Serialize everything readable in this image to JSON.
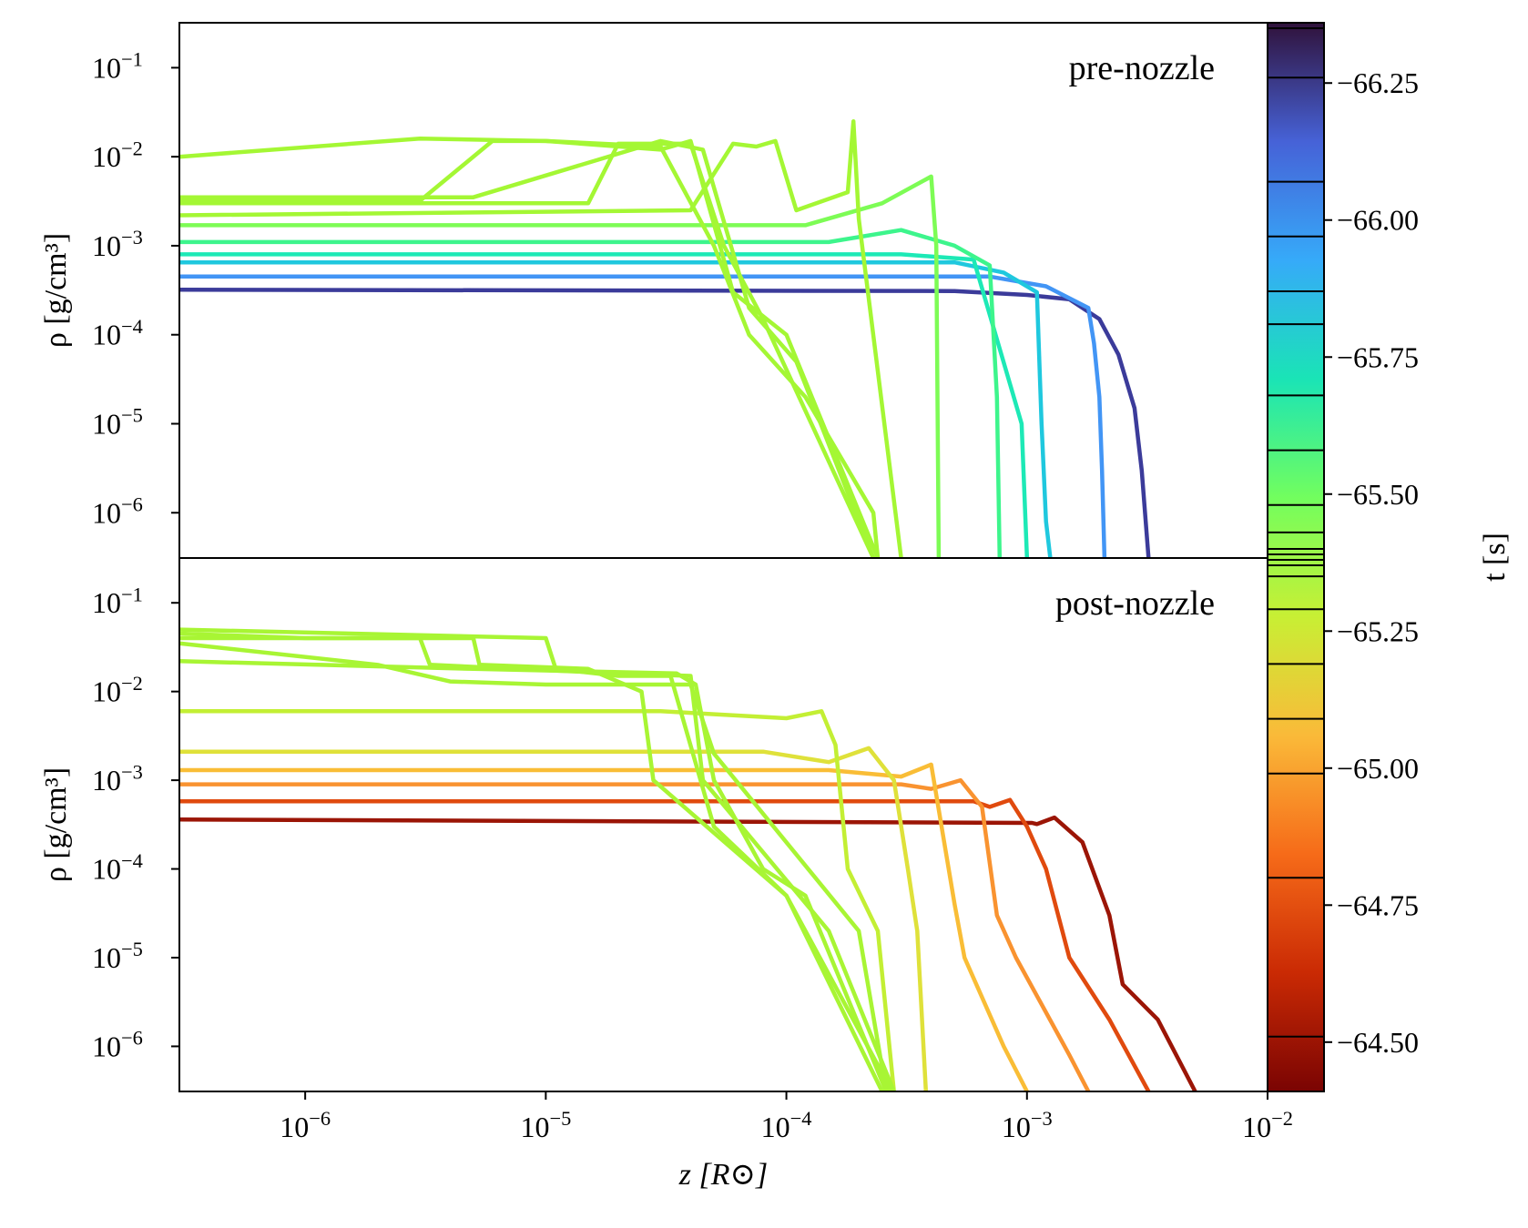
{
  "chart_data": [
    {
      "type": "line",
      "annotation": "pre-nozzle",
      "ylabel": "ρ [g/cm³]",
      "xscale": "log",
      "yscale": "log",
      "xlim": [
        3e-07,
        0.01
      ],
      "ylim": [
        3.1e-07,
        0.32
      ],
      "yticks": [
        {
          "value": 0.1,
          "label": "10−1"
        },
        {
          "value": 0.01,
          "label": "10−2"
        },
        {
          "value": 0.001,
          "label": "10−3"
        },
        {
          "value": 0.0001,
          "label": "10−4"
        },
        {
          "value": 1e-05,
          "label": "10−5"
        },
        {
          "value": 1e-06,
          "label": "10−6"
        }
      ],
      "series": [
        {
          "color": "#3b3b9a",
          "x": [
            3e-07,
            0.0005,
            0.001,
            0.0015,
            0.002,
            0.0024,
            0.0028,
            0.003,
            0.0032
          ],
          "values": [
            0.00032,
            0.00031,
            0.00028,
            0.00025,
            0.00015,
            6e-05,
            1.5e-05,
            3e-06,
            3.1e-07
          ]
        },
        {
          "color": "#4295f5",
          "x": [
            3e-07,
            0.0007,
            0.0012,
            0.0018,
            0.0019,
            0.002,
            0.00205,
            0.0021
          ],
          "values": [
            0.00045,
            0.00045,
            0.00035,
            0.0002,
            8e-05,
            2e-05,
            3e-06,
            3.1e-07
          ]
        },
        {
          "color": "#1fc8de",
          "x": [
            3e-07,
            0.0005,
            0.0008,
            0.0011,
            0.00115,
            0.0012,
            0.00125
          ],
          "values": [
            0.00065,
            0.00065,
            0.0005,
            0.0003,
            1e-05,
            8e-07,
            3.1e-07
          ]
        },
        {
          "color": "#1de9b6",
          "x": [
            3e-07,
            0.0003,
            0.0006,
            0.00095,
            0.001
          ],
          "values": [
            0.0008,
            0.0008,
            0.0007,
            1e-05,
            3.1e-07
          ]
        },
        {
          "color": "#3df58c",
          "x": [
            3e-07,
            0.00015,
            0.0003,
            0.0005,
            0.0007,
            0.00075,
            0.00077
          ],
          "values": [
            0.0011,
            0.0011,
            0.0015,
            0.001,
            0.0006,
            2e-05,
            3.1e-07
          ]
        },
        {
          "color": "#7dfc55",
          "x": [
            3e-07,
            0.00012,
            0.00025,
            0.0004,
            0.00042,
            0.00043
          ],
          "values": [
            0.0017,
            0.0017,
            0.003,
            0.006,
            0.001,
            3.1e-07
          ]
        },
        {
          "color": "#a4f734",
          "x": [
            3e-07,
            3e-06,
            6e-06,
            1e-05,
            3e-05,
            5e-05,
            7e-05,
            0.00012,
            0.00023,
            0.00024
          ],
          "values": [
            0.0032,
            0.0032,
            0.015,
            0.015,
            0.013,
            0.001,
            0.0001,
            2e-05,
            1e-06,
            3.1e-07
          ]
        },
        {
          "color": "#a4f734",
          "x": [
            3e-07,
            1.5e-05,
            2e-05,
            4e-05,
            5.5e-05,
            8e-05,
            0.00023
          ],
          "values": [
            0.003,
            0.003,
            0.014,
            0.014,
            0.001,
            0.00015,
            3.1e-07
          ]
        },
        {
          "color": "#a4f734",
          "x": [
            3e-07,
            4e-05,
            6e-05,
            7.5e-05,
            9e-05,
            0.00011,
            0.00018,
            0.00019,
            0.0002,
            0.0003
          ],
          "values": [
            0.0022,
            0.0025,
            0.014,
            0.013,
            0.015,
            0.0025,
            0.004,
            0.025,
            0.002,
            3.1e-07
          ]
        },
        {
          "color": "#a4f734",
          "x": [
            3e-07,
            3e-06,
            1e-05,
            3e-05,
            4e-05,
            6e-05,
            0.0001,
            0.00024
          ],
          "values": [
            0.01,
            0.016,
            0.015,
            0.012,
            0.015,
            0.0003,
            0.0001,
            3.1e-07
          ]
        },
        {
          "color": "#a4f734",
          "x": [
            3e-07,
            5e-06,
            3e-05,
            4.5e-05,
            7e-05,
            0.00011,
            0.00023
          ],
          "values": [
            0.0035,
            0.0035,
            0.015,
            0.012,
            0.0002,
            5e-05,
            3.1e-07
          ]
        }
      ]
    },
    {
      "type": "line",
      "annotation": "post-nozzle",
      "ylabel": "ρ [g/cm³]",
      "xlabel": "z [R⊙]",
      "xscale": "log",
      "yscale": "log",
      "xlim": [
        3e-07,
        0.01
      ],
      "ylim": [
        3.1e-07,
        0.32
      ],
      "xticks": [
        {
          "value": 1e-06,
          "label": "10−6"
        },
        {
          "value": 1e-05,
          "label": "10−5"
        },
        {
          "value": 0.0001,
          "label": "10−4"
        },
        {
          "value": 0.001,
          "label": "10−3"
        },
        {
          "value": 0.01,
          "label": "10−2"
        }
      ],
      "yticks": [
        {
          "value": 0.1,
          "label": "10−1"
        },
        {
          "value": 0.01,
          "label": "10−2"
        },
        {
          "value": 0.001,
          "label": "10−3"
        },
        {
          "value": 0.0001,
          "label": "10−4"
        },
        {
          "value": 1e-05,
          "label": "10−5"
        },
        {
          "value": 1e-06,
          "label": "10−6"
        }
      ],
      "series": [
        {
          "color": "#9b1506",
          "x": [
            3e-07,
            0.00105,
            0.0011,
            0.0013,
            0.0017,
            0.0022,
            0.0025,
            0.0035,
            0.005
          ],
          "values": [
            0.00036,
            0.00033,
            0.00032,
            0.00038,
            0.0002,
            3e-05,
            5e-06,
            2e-06,
            3.1e-07
          ]
        },
        {
          "color": "#e04a0e",
          "x": [
            3e-07,
            0.0006,
            0.0007,
            0.00085,
            0.001,
            0.0012,
            0.0015,
            0.0022,
            0.0032
          ],
          "values": [
            0.00058,
            0.00058,
            0.0005,
            0.0006,
            0.0003,
            0.0001,
            1e-05,
            2e-06,
            3.1e-07
          ]
        },
        {
          "color": "#f99330",
          "x": [
            3e-07,
            0.0003,
            0.0004,
            0.00053,
            0.00065,
            0.00075,
            0.0009,
            0.0015,
            0.0018
          ],
          "values": [
            0.0009,
            0.0009,
            0.0008,
            0.001,
            0.0005,
            3e-05,
            1e-05,
            8e-07,
            3.1e-07
          ]
        },
        {
          "color": "#f9bd36",
          "x": [
            3e-07,
            0.00015,
            0.0003,
            0.0004,
            0.0005,
            0.00055,
            0.0008,
            0.001
          ],
          "values": [
            0.0013,
            0.0013,
            0.0011,
            0.0015,
            4e-05,
            1e-05,
            1e-06,
            3.1e-07
          ]
        },
        {
          "color": "#dfe13a",
          "x": [
            3e-07,
            8e-05,
            0.00015,
            0.00022,
            0.00028,
            0.00032,
            0.00035,
            0.00038
          ],
          "values": [
            0.0021,
            0.0021,
            0.0016,
            0.0023,
            0.001,
            0.0001,
            2e-05,
            3.1e-07
          ]
        },
        {
          "color": "#c3ef34",
          "x": [
            3e-07,
            3e-05,
            0.0001,
            0.00014,
            0.00016,
            0.00018,
            0.00024,
            0.00028
          ],
          "values": [
            0.006,
            0.006,
            0.005,
            0.006,
            0.0025,
            0.0001,
            2e-05,
            3.1e-07
          ]
        },
        {
          "color": "#a8f534",
          "x": [
            3e-07,
            1e-05,
            1.1e-05,
            2e-05,
            3e-05,
            3.3e-05,
            5e-05,
            0.0001,
            0.00025,
            0.00027
          ],
          "values": [
            0.05,
            0.04,
            0.018,
            0.015,
            0.015,
            0.015,
            0.0003,
            5e-05,
            5e-07,
            3.1e-07
          ]
        },
        {
          "color": "#a8f534",
          "x": [
            3e-07,
            1e-06,
            5e-06,
            5.3e-06,
            1.5e-05,
            2.5e-05,
            2.8e-05,
            0.0001,
            0.00025
          ],
          "values": [
            0.045,
            0.04,
            0.04,
            0.02,
            0.018,
            0.01,
            0.001,
            5e-05,
            3.1e-07
          ]
        },
        {
          "color": "#a8f534",
          "x": [
            3e-07,
            3e-06,
            3.3e-06,
            2e-05,
            4e-05,
            4.5e-05,
            0.00015,
            0.00028
          ],
          "values": [
            0.04,
            0.04,
            0.02,
            0.016,
            0.015,
            0.001,
            2e-05,
            3.1e-07
          ]
        },
        {
          "color": "#a8f534",
          "x": [
            3e-07,
            5e-06,
            3.5e-05,
            4.2e-05,
            5e-05,
            8e-05,
            0.00012,
            0.00026
          ],
          "values": [
            0.022,
            0.018,
            0.016,
            0.012,
            0.001,
            0.0001,
            5e-05,
            3.1e-07
          ]
        },
        {
          "color": "#a8f534",
          "x": [
            3e-07,
            2e-06,
            4e-06,
            1e-05,
            1.2e-05,
            4e-05,
            5e-05,
            0.0002,
            0.00026
          ],
          "values": [
            0.035,
            0.02,
            0.013,
            0.012,
            0.012,
            0.012,
            0.002,
            2e-05,
            3.1e-07
          ]
        }
      ]
    },
    {
      "type": "colorbar",
      "label": "t [s]",
      "lim": [
        -66.36,
        -64.41
      ],
      "colors": [
        "#30123b",
        "#4662d7",
        "#36aaf9",
        "#1ae4b6",
        "#72fe5e",
        "#c8ef34",
        "#faba39",
        "#f66b19",
        "#ca2a04",
        "#7a0403"
      ],
      "ticks": [
        {
          "value": -66.25,
          "label": "−66.25"
        },
        {
          "value": -66.0,
          "label": "−66.00"
        },
        {
          "value": -65.75,
          "label": "−65.75"
        },
        {
          "value": -65.5,
          "label": "−65.50"
        },
        {
          "value": -65.25,
          "label": "−65.25"
        },
        {
          "value": -65.0,
          "label": "−65.00"
        },
        {
          "value": -64.75,
          "label": "−64.75"
        },
        {
          "value": -64.5,
          "label": "−64.50"
        }
      ],
      "levels": [
        -66.35,
        -66.26,
        -66.07,
        -65.97,
        -65.87,
        -65.81,
        -65.68,
        -65.58,
        -65.48,
        -65.43,
        -65.4,
        -65.39,
        -65.38,
        -65.37,
        -65.35,
        -65.29,
        -65.19,
        -65.09,
        -64.99,
        -64.8,
        -64.51
      ]
    }
  ]
}
